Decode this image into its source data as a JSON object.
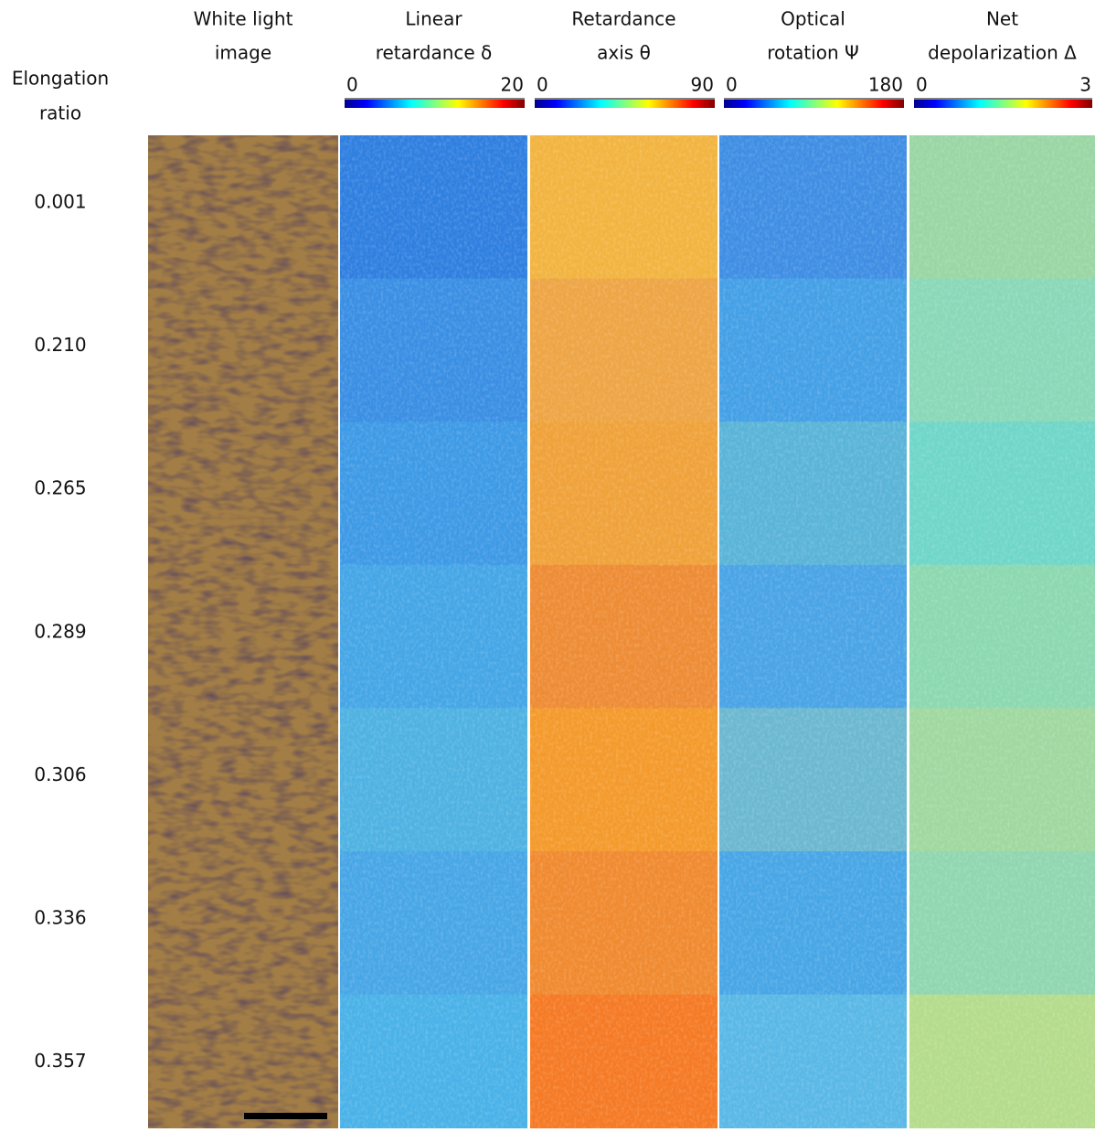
{
  "row_header": {
    "lines": [
      "Elongation",
      "ratio"
    ]
  },
  "columns": [
    {
      "lines": [
        "White light",
        "image"
      ]
    },
    {
      "lines": [
        "Linear",
        "retardance δ"
      ],
      "colorbar": {
        "min": 0,
        "max": 20
      }
    },
    {
      "lines": [
        "Retardance",
        "axis θ"
      ],
      "colorbar": {
        "min": 0,
        "max": 90
      }
    },
    {
      "lines": [
        "Optical",
        "rotation Ψ"
      ],
      "colorbar": {
        "min": 0,
        "max": 180
      }
    },
    {
      "lines": [
        "Net",
        "depolarization Δ"
      ],
      "colorbar": {
        "min": 0,
        "max": 3
      }
    }
  ],
  "rows": [
    "0.001",
    "0.210",
    "0.265",
    "0.289",
    "0.306",
    "0.336",
    "0.357"
  ]
}
